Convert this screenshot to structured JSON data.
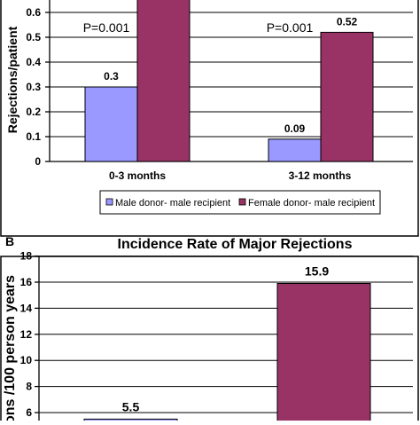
{
  "chart_data": [
    {
      "type": "bar",
      "title": "",
      "ylabel": "Rejections/patient",
      "xlabel": "",
      "categories": [
        "0-3 months",
        "3-12 months"
      ],
      "series": [
        {
          "name": "Male donor- male recipient",
          "values": [
            0.3,
            0.09
          ],
          "color": "#9999ff"
        },
        {
          "name": "Female donor- male recipient",
          "values": [
            0.71,
            0.52
          ],
          "color": "#993366"
        }
      ],
      "data_labels": [
        "0.3",
        "",
        "0.09",
        "0.52"
      ],
      "annotations": [
        "P=0.001",
        "P=0.001"
      ],
      "yticks": [
        "0",
        "0.1",
        "0.2",
        "0.3",
        "0.4",
        "0.5",
        "0.6"
      ],
      "ylim": [
        0,
        0.7
      ],
      "grid": true,
      "legend": "bottom"
    },
    {
      "type": "bar",
      "panel": "B",
      "title": "Incidence Rate of Major Rejections",
      "ylabel": "ons /100 person years",
      "xlabel": "",
      "categories": [
        "",
        ""
      ],
      "series": [
        {
          "name": "",
          "values": [
            5.5,
            15.9
          ],
          "colors": [
            "#9999ff",
            "#993366"
          ]
        }
      ],
      "data_labels": [
        "5.5",
        "15.9"
      ],
      "yticks": [
        "6",
        "8",
        "10",
        "12",
        "14",
        "16",
        "18"
      ],
      "ylim": [
        4,
        18
      ],
      "grid": true,
      "legend": "none"
    }
  ]
}
